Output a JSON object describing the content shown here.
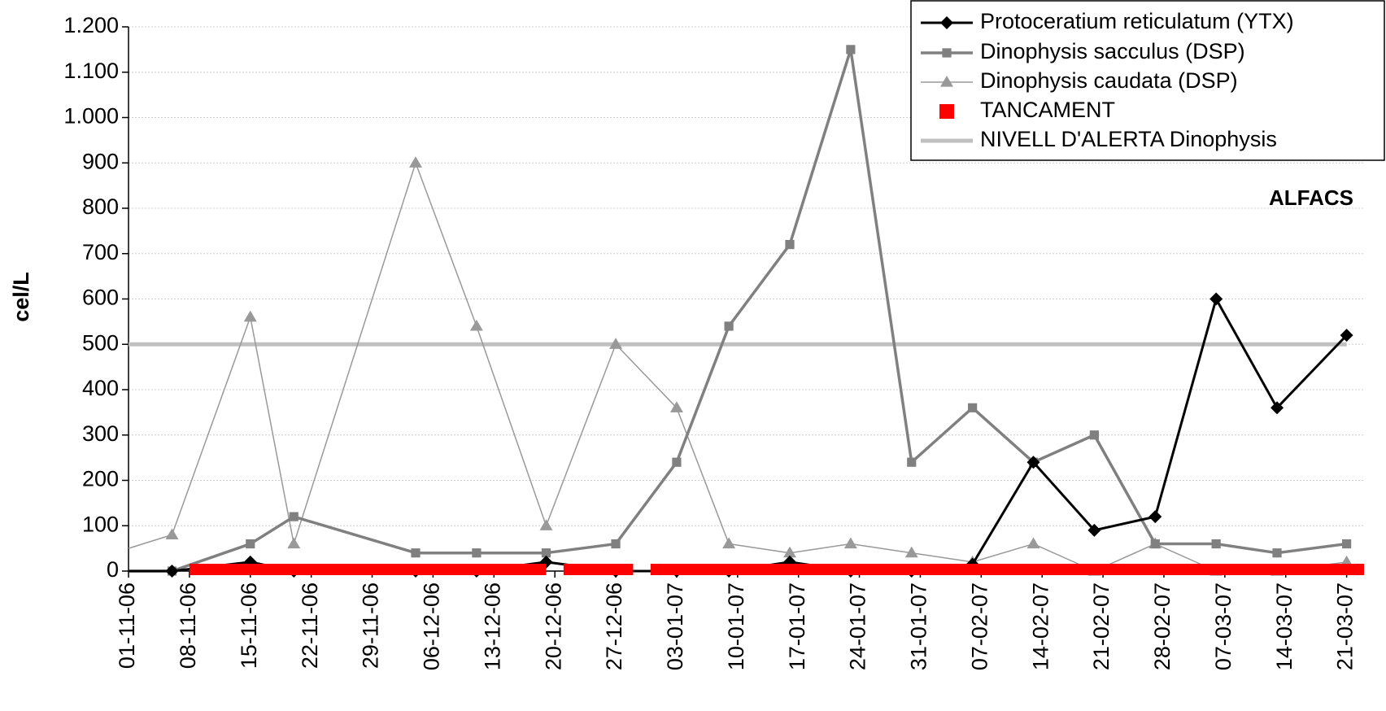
{
  "chart_data": {
    "type": "line",
    "ylabel": "cel/L",
    "annotation": "ALFACS",
    "xlim": [
      "01-11-06",
      "23-03-07"
    ],
    "xticks": [
      "01-11-06",
      "08-11-06",
      "15-11-06",
      "22-11-06",
      "29-11-06",
      "06-12-06",
      "13-12-06",
      "20-12-06",
      "27-12-06",
      "03-01-07",
      "10-01-07",
      "17-01-07",
      "24-01-07",
      "31-01-07",
      "07-02-07",
      "14-02-07",
      "21-02-07",
      "28-02-07",
      "07-03-07",
      "14-03-07",
      "21-03-07"
    ],
    "ylim": [
      0,
      1200
    ],
    "yticks": [
      0,
      100,
      200,
      300,
      400,
      500,
      600,
      700,
      800,
      900,
      {
        "value": 1000,
        "label": "1.000"
      },
      {
        "value": 1100,
        "label": "1.100"
      },
      {
        "value": 1200,
        "label": "1.200"
      }
    ],
    "grid": true,
    "legend": "upper right",
    "x": [
      "01-11-06",
      "06-11-06",
      "15-11-06",
      "20-11-06",
      "04-12-06",
      "11-12-06",
      "19-12-06",
      "27-12-06",
      "03-01-07",
      "09-01-07",
      "16-01-07",
      "23-01-07",
      "30-01-07",
      "06-02-07",
      "13-02-07",
      "20-02-07",
      "27-02-07",
      "06-03-07",
      "13-03-07",
      "21-03-07"
    ],
    "series": [
      {
        "name": "Protoceratium reticulatum (YTX)",
        "color": "#000000",
        "marker": "diamond",
        "width": 3,
        "values": [
          0,
          0,
          20,
          0,
          0,
          0,
          20,
          0,
          0,
          0,
          20,
          0,
          0,
          15,
          240,
          90,
          120,
          600,
          360,
          520
        ]
      },
      {
        "name": "Dinophysis sacculus (DSP)",
        "color": "#808080",
        "marker": "square",
        "width": 3.5,
        "values": [
          0,
          0,
          60,
          120,
          40,
          40,
          40,
          60,
          240,
          540,
          720,
          1150,
          240,
          360,
          240,
          300,
          60,
          60,
          40,
          60
        ]
      },
      {
        "name": "Dinophysis caudata (DSP)",
        "color": "#999999",
        "marker": "triangle",
        "width": 1.5,
        "values": [
          50,
          80,
          560,
          60,
          900,
          540,
          100,
          500,
          360,
          60,
          40,
          60,
          40,
          20,
          60,
          0,
          60,
          0,
          0,
          20
        ]
      }
    ],
    "closures": {
      "name": "TANCAMENT",
      "color": "#ff0000",
      "periods": [
        [
          "08-11-06",
          "19-12-06"
        ],
        [
          "21-12-06",
          "29-12-06"
        ],
        [
          "31-12-06",
          "23-03-07"
        ]
      ]
    },
    "alert": {
      "name": "NIVELL D'ALERTA Dinophysis",
      "color": "#c0c0c0",
      "value": 500
    }
  }
}
